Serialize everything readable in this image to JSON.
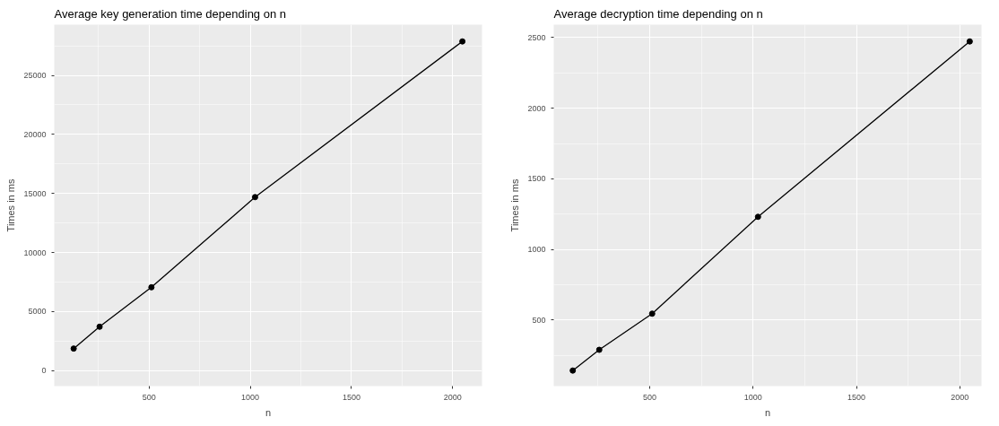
{
  "chart_data": [
    {
      "type": "line",
      "title": "Average key generation time depending on n",
      "xlabel": "n",
      "ylabel": "Times in ms",
      "x": [
        128,
        256,
        512,
        1024,
        2048
      ],
      "series": [
        {
          "color": "#000000",
          "values": [
            1860,
            3710,
            7050,
            14690,
            27880
          ]
        }
      ],
      "xlim": [
        32,
        2145
      ],
      "ylim": [
        -1320,
        29300
      ],
      "xticks": [
        500,
        1000,
        1500,
        2000
      ],
      "yticks": [
        0,
        5000,
        10000,
        15000,
        20000,
        25000
      ],
      "grid": true,
      "marker": "circle",
      "line_style": "solid"
    },
    {
      "type": "line",
      "title": "Average decryption time depending on n",
      "xlabel": "n",
      "ylabel": "Times in ms",
      "x": [
        128,
        256,
        512,
        1024,
        2048
      ],
      "series": [
        {
          "color": "#000000",
          "values": [
            142,
            289,
            545,
            1231,
            2473
          ]
        }
      ],
      "xlim": [
        36,
        2105
      ],
      "ylim": [
        32,
        2592
      ],
      "xticks": [
        500,
        1000,
        1500,
        2000
      ],
      "yticks": [
        500,
        1000,
        1500,
        2000,
        2500
      ],
      "grid": true,
      "marker": "circle",
      "line_style": "solid"
    }
  ]
}
